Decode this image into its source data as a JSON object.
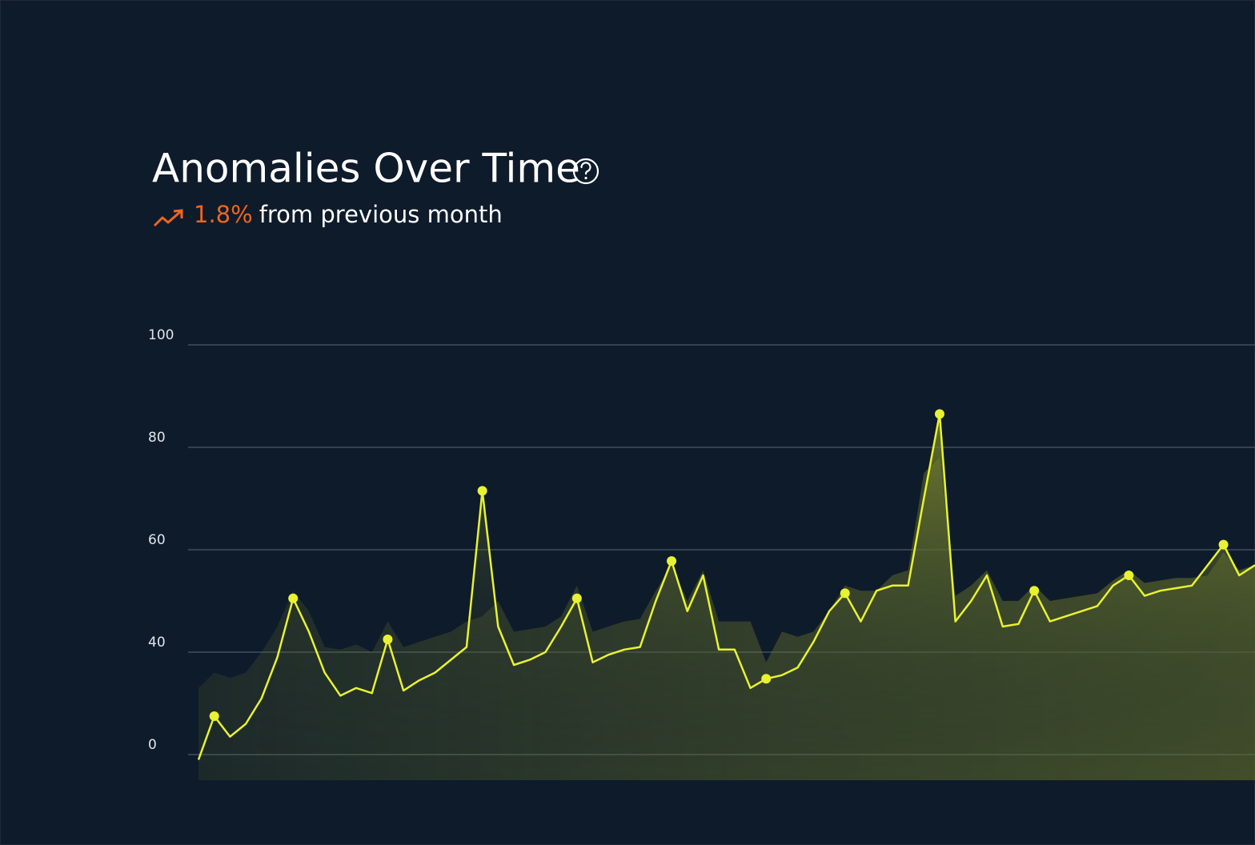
{
  "chart_data": {
    "type": "line",
    "title": "Anomalies Over Time",
    "change": "1.8%",
    "change_text": "from previous month",
    "ylim": [
      15,
      100
    ],
    "yticks": [
      {
        "value": 20,
        "label": "0"
      },
      40,
      60,
      80,
      100
    ],
    "grid": true,
    "series": [
      {
        "mark": "area",
        "color": "#6f7a2a",
        "values": [
          33,
          36,
          35,
          36,
          40,
          45,
          52,
          48,
          41,
          40.5,
          41.5,
          40,
          46,
          41,
          42,
          43,
          44,
          46,
          47,
          50,
          44,
          44.5,
          45,
          47,
          53,
          44,
          45,
          46,
          46.5,
          52,
          57,
          50,
          56,
          46,
          46,
          46,
          38,
          44,
          43,
          44,
          48,
          53,
          52,
          52,
          55,
          56,
          75,
          78,
          51,
          53,
          56,
          50,
          50,
          53,
          50,
          50.5,
          51,
          51.5,
          54,
          56,
          53.5,
          54,
          54.5,
          54.5,
          55,
          59.5,
          56,
          57
        ]
      },
      {
        "mark": "line",
        "color": "#e8f230",
        "values": [
          19,
          27.5,
          23.5,
          26,
          31,
          39,
          50.5,
          44,
          36,
          31.5,
          33,
          32,
          42.5,
          32.5,
          34.5,
          36,
          38.5,
          41,
          71.5,
          45,
          37.5,
          38.5,
          40,
          45,
          50.5,
          38,
          39.5,
          40.5,
          41,
          50,
          57.8,
          48,
          55,
          40.5,
          40.5,
          33,
          34.8,
          35.5,
          37,
          42,
          48,
          51.5,
          46,
          52,
          53,
          53,
          70,
          86.5,
          46,
          50,
          55,
          45,
          45.5,
          52,
          46,
          47,
          48,
          49,
          53,
          55,
          51,
          52,
          52.5,
          53,
          57,
          61,
          55,
          57
        ]
      },
      {
        "mark": "dot",
        "color": "#e8f230",
        "values": [
          null,
          27.5,
          null,
          null,
          null,
          null,
          50.5,
          null,
          null,
          null,
          null,
          null,
          42.5,
          null,
          null,
          null,
          null,
          null,
          71.5,
          null,
          null,
          null,
          null,
          null,
          50.5,
          null,
          null,
          null,
          null,
          null,
          57.8,
          null,
          null,
          null,
          null,
          null,
          34.8,
          null,
          null,
          null,
          null,
          51.5,
          null,
          null,
          null,
          null,
          null,
          86.5,
          null,
          null,
          null,
          null,
          null,
          52,
          null,
          null,
          null,
          null,
          null,
          55,
          null,
          null,
          null,
          null,
          null,
          61,
          null,
          null
        ]
      }
    ]
  }
}
